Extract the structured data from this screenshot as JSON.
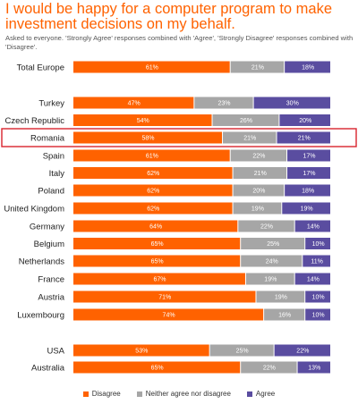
{
  "header": {
    "title": "I would be happy for a computer program to make investment decisions on my behalf.",
    "subtitle": "Asked to everyone. 'Strongly Agree' responses combined with 'Agree', 'Strongly Disagree' responses combined with 'Disagree'."
  },
  "colors": {
    "disagree": "#ff6200",
    "neutral": "#a6a6a6",
    "agree": "#5a4da0",
    "highlight": "#d9232e"
  },
  "chart_data": {
    "type": "bar",
    "orientation": "horizontal",
    "stacked": true,
    "categories": [
      "Total Europe",
      "Turkey",
      "Czech Republic",
      "Romania",
      "Spain",
      "Italy",
      "Poland",
      "United Kingdom",
      "Germany",
      "Belgium",
      "Netherlands",
      "France",
      "Austria",
      "Luxembourg",
      "USA",
      "Australia"
    ],
    "series": [
      {
        "name": "Disagree",
        "values": [
          61,
          47,
          54,
          58,
          61,
          62,
          62,
          62,
          64,
          65,
          65,
          67,
          71,
          74,
          53,
          65
        ]
      },
      {
        "name": "Neither agree nor disagree",
        "values": [
          21,
          23,
          26,
          21,
          22,
          21,
          20,
          19,
          22,
          25,
          24,
          19,
          19,
          16,
          25,
          22
        ]
      },
      {
        "name": "Agree",
        "values": [
          18,
          30,
          20,
          21,
          17,
          17,
          18,
          19,
          14,
          10,
          11,
          14,
          10,
          10,
          22,
          13
        ]
      }
    ],
    "value_suffix": "%",
    "highlighted_category": "Romania",
    "legend_position": "bottom",
    "xlim": [
      0,
      100
    ],
    "grid": false
  }
}
